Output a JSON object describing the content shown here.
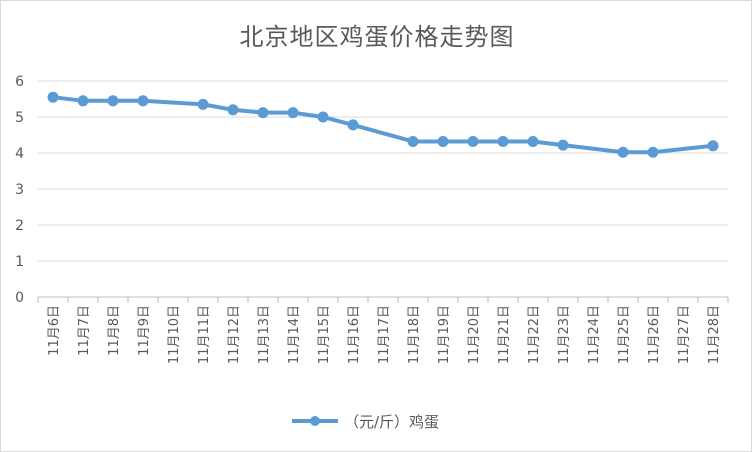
{
  "chart_data": {
    "type": "line",
    "title": "北京地区鸡蛋价格走势图",
    "categories": [
      "11月6日",
      "11月7日",
      "11月8日",
      "11月9日",
      "11月10日",
      "11月11日",
      "11月12日",
      "11月13日",
      "11月14日",
      "11月15日",
      "11月16日",
      "11月17日",
      "11月18日",
      "11月19日",
      "11月20日",
      "11月21日",
      "11月22日",
      "11月23日",
      "11月24日",
      "11月25日",
      "11月26日",
      "11月27日",
      "11月28日"
    ],
    "series": [
      {
        "name": "（元/斤）鸡蛋",
        "color": "#5b9bd5",
        "values": [
          5.55,
          5.45,
          5.45,
          5.45,
          null,
          5.35,
          5.2,
          5.12,
          5.12,
          5.0,
          4.78,
          null,
          4.32,
          4.32,
          4.32,
          4.32,
          4.32,
          4.22,
          null,
          4.02,
          4.02,
          null,
          4.2
        ]
      }
    ],
    "ylim": [
      0,
      6
    ],
    "yticks": [
      0,
      1,
      2,
      3,
      4,
      5,
      6
    ],
    "grid": true,
    "legend": "bottom"
  }
}
